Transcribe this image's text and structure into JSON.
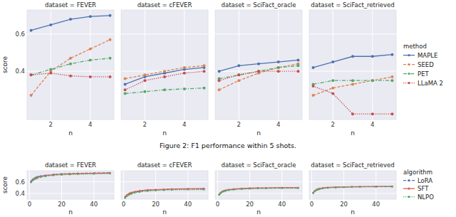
{
  "chart_data": [
    {
      "type": "line",
      "caption": "Figure 2: F1 performance within 5 shots.",
      "x_label": "n",
      "y_label": "score",
      "legend": "right",
      "legend_title": "method",
      "grid": true,
      "x": [
        1,
        2,
        3,
        4,
        5
      ],
      "xlim": [
        0.8,
        5.2
      ],
      "xticks": [
        2,
        4
      ],
      "ylim": [
        0.14,
        0.73
      ],
      "yticks": [
        0.4,
        0.6
      ],
      "series": [
        {
          "name": "MAPLE",
          "color": "#4c72b0",
          "marker": "circle",
          "line_style": "solid"
        },
        {
          "name": "SEED",
          "color": "#dd8452",
          "marker": "circle",
          "line_style": "dashed"
        },
        {
          "name": "PET",
          "color": "#55a868",
          "marker": "circle",
          "line_style": "dashdot"
        },
        {
          "name": "LLaMA 2",
          "color": "#c44e52",
          "marker": "circle",
          "line_style": "dotted"
        }
      ],
      "panels": [
        {
          "title": "dataset = FEVER",
          "values": [
            [
              0.62,
              0.65,
              0.68,
              0.695,
              0.7
            ],
            [
              0.27,
              0.4,
              0.47,
              0.52,
              0.57
            ],
            [
              0.38,
              0.41,
              0.44,
              0.46,
              0.47
            ],
            [
              0.38,
              0.39,
              0.375,
              0.37,
              0.37
            ]
          ]
        },
        {
          "title": "dataset = cFEVER",
          "values": [
            [
              0.33,
              0.37,
              0.39,
              0.41,
              0.42
            ],
            [
              0.36,
              0.38,
              0.4,
              0.42,
              0.43
            ],
            [
              0.28,
              0.29,
              0.3,
              0.305,
              0.31
            ],
            [
              0.3,
              0.35,
              0.37,
              0.39,
              0.4
            ]
          ]
        },
        {
          "title": "dataset = SciFact_oracle",
          "values": [
            [
              0.4,
              0.43,
              0.44,
              0.45,
              0.46
            ],
            [
              0.3,
              0.35,
              0.39,
              0.42,
              0.44
            ],
            [
              0.36,
              0.38,
              0.4,
              0.42,
              0.43
            ],
            [
              0.35,
              0.38,
              0.4,
              0.4,
              0.4
            ]
          ]
        },
        {
          "title": "dataset = SciFact_retrieved",
          "values": [
            [
              0.42,
              0.45,
              0.48,
              0.48,
              0.49
            ],
            [
              0.27,
              0.31,
              0.33,
              0.35,
              0.37
            ],
            [
              0.33,
              0.35,
              0.35,
              0.35,
              0.35
            ],
            [
              0.32,
              0.28,
              0.17,
              0.17,
              0.17
            ]
          ]
        }
      ]
    },
    {
      "type": "line",
      "x_label": "n",
      "y_label": "score",
      "legend": "right",
      "legend_title": "algorithm",
      "grid": true,
      "x": [
        1,
        2,
        3,
        4,
        5,
        7,
        10,
        15,
        20,
        25,
        30,
        40,
        50
      ],
      "xlim": [
        -1.5,
        52.5
      ],
      "xticks": [
        0,
        20,
        40
      ],
      "ylim": [
        0.3,
        0.79
      ],
      "yticks": [
        0.4,
        0.6
      ],
      "series": [
        {
          "name": "LoRA",
          "color": "#4c72b0",
          "marker": "circle",
          "line_style": "dashed"
        },
        {
          "name": "SFT",
          "color": "#dd5f4f",
          "marker": "circle",
          "line_style": "solid"
        },
        {
          "name": "NLPO",
          "color": "#55a868",
          "marker": "circle",
          "line_style": "dotted"
        }
      ],
      "panels": [
        {
          "title": "dataset = FEVER",
          "values": [
            [
              0.61,
              0.64,
              0.66,
              0.675,
              0.685,
              0.7,
              0.71,
              0.725,
              0.735,
              0.74,
              0.745,
              0.75,
              0.755
            ],
            [
              0.6,
              0.63,
              0.65,
              0.665,
              0.675,
              0.69,
              0.705,
              0.72,
              0.73,
              0.735,
              0.74,
              0.745,
              0.75
            ],
            [
              0.59,
              0.62,
              0.64,
              0.655,
              0.665,
              0.68,
              0.695,
              0.71,
              0.72,
              0.725,
              0.73,
              0.735,
              0.74
            ]
          ]
        },
        {
          "title": "dataset = cFEVER",
          "values": [
            [
              0.33,
              0.36,
              0.38,
              0.395,
              0.405,
              0.42,
              0.435,
              0.45,
              0.46,
              0.465,
              0.47,
              0.475,
              0.475
            ],
            [
              0.34,
              0.37,
              0.39,
              0.405,
              0.415,
              0.43,
              0.445,
              0.46,
              0.465,
              0.47,
              0.475,
              0.48,
              0.485
            ],
            [
              0.32,
              0.35,
              0.37,
              0.385,
              0.395,
              0.41,
              0.425,
              0.44,
              0.45,
              0.455,
              0.46,
              0.465,
              0.465
            ]
          ]
        },
        {
          "title": "dataset = SciFact_oracle",
          "values": [
            [
              0.38,
              0.41,
              0.43,
              0.44,
              0.45,
              0.46,
              0.47,
              0.48,
              0.485,
              0.49,
              0.49,
              0.495,
              0.495
            ],
            [
              0.385,
              0.415,
              0.435,
              0.445,
              0.455,
              0.465,
              0.475,
              0.485,
              0.49,
              0.495,
              0.495,
              0.5,
              0.5
            ],
            [
              0.375,
              0.405,
              0.425,
              0.435,
              0.445,
              0.455,
              0.465,
              0.475,
              0.48,
              0.485,
              0.485,
              0.49,
              0.49
            ]
          ]
        },
        {
          "title": "dataset = SciFact_retrieved",
          "values": [
            [
              0.41,
              0.44,
              0.46,
              0.47,
              0.48,
              0.49,
              0.5,
              0.505,
              0.51,
              0.51,
              0.515,
              0.515,
              0.52
            ],
            [
              0.41,
              0.445,
              0.465,
              0.475,
              0.485,
              0.495,
              0.5,
              0.51,
              0.51,
              0.515,
              0.515,
              0.52,
              0.52
            ],
            [
              0.405,
              0.435,
              0.455,
              0.465,
              0.475,
              0.485,
              0.495,
              0.5,
              0.505,
              0.51,
              0.51,
              0.515,
              0.515
            ]
          ]
        }
      ]
    }
  ]
}
